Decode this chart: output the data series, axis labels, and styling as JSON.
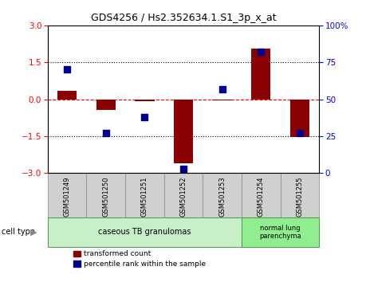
{
  "title": "GDS4256 / Hs2.352634.1.S1_3p_x_at",
  "samples": [
    "GSM501249",
    "GSM501250",
    "GSM501251",
    "GSM501252",
    "GSM501253",
    "GSM501254",
    "GSM501255"
  ],
  "transformed_counts": [
    0.35,
    -0.45,
    -0.08,
    -2.6,
    -0.05,
    2.05,
    -1.55
  ],
  "percentile_ranks": [
    70,
    27,
    38,
    3,
    57,
    82,
    27
  ],
  "bar_color": "#8B0000",
  "dot_color": "#00008B",
  "ylim": [
    -3,
    3
  ],
  "y2lim": [
    0,
    100
  ],
  "yticks": [
    -3,
    -1.5,
    0,
    1.5,
    3
  ],
  "y2ticks": [
    0,
    25,
    50,
    75,
    100
  ],
  "bar_width": 0.5,
  "dot_size": 40,
  "group1_label": "caseous TB granulomas",
  "group2_label": "normal lung\nparenchyma",
  "group1_color": "#c8f0c8",
  "group2_color": "#90ee90",
  "sample_box_color": "#d0d0d0",
  "legend_items": [
    "transformed count",
    "percentile rank within the sample"
  ],
  "legend_colors": [
    "#8B0000",
    "#00008B"
  ]
}
